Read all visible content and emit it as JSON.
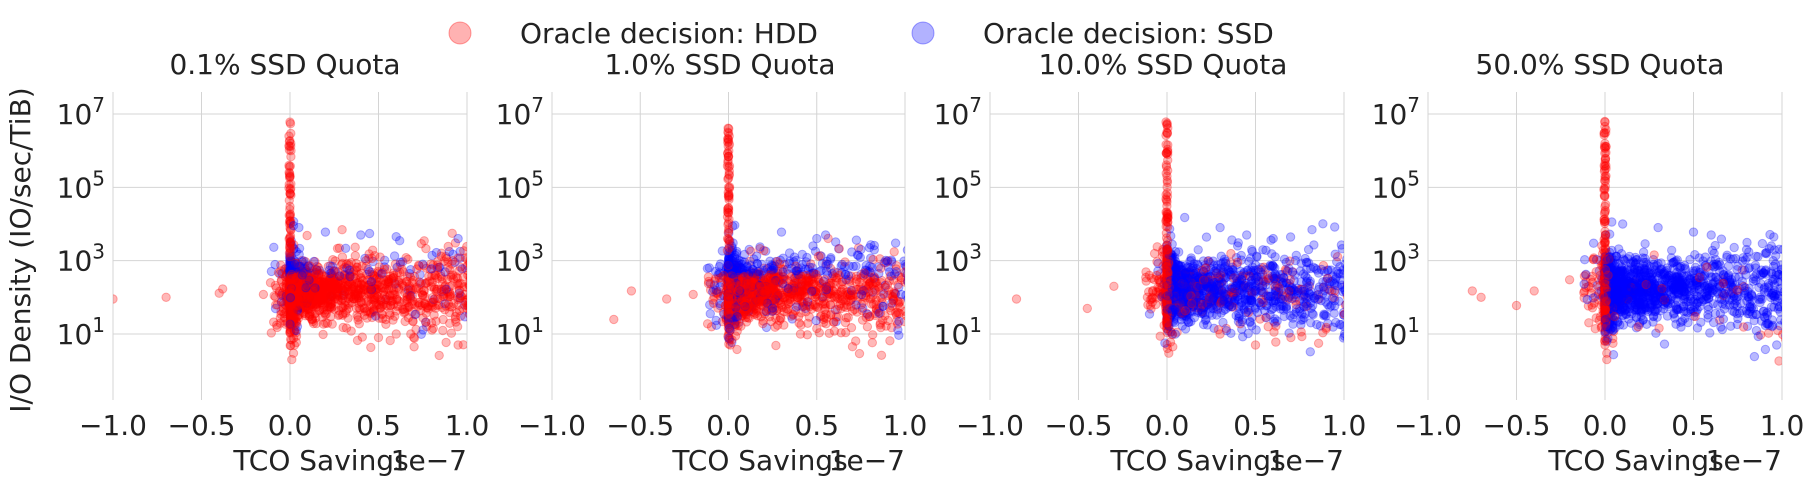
{
  "colors": {
    "hdd": "#ff0000",
    "ssd": "#0000ff",
    "grid": "#d4d4d4",
    "text": "#222222"
  },
  "legend": {
    "position": "top-center",
    "items": [
      {
        "label": "Oracle decision: HDD",
        "color": "#ff0000"
      },
      {
        "label": "Oracle decision: SSD",
        "color": "#0000ff"
      }
    ]
  },
  "shared": {
    "ylabel": "I/O Density (IO/sec/TiB)",
    "xlabel": "TCO Savings",
    "x_offset_text": "1e−7",
    "x_ticks": [
      -1.0,
      -0.5,
      0.0,
      0.5,
      1.0
    ],
    "x_tick_labels": [
      "−1.0",
      "−0.5",
      "0.0",
      "0.5",
      "1.0"
    ],
    "y_ticks_exp": [
      1,
      3,
      5,
      7
    ]
  },
  "chart_data": [
    {
      "type": "scatter",
      "title": "0.1% SSD Quota",
      "xlim": [
        -1.0,
        1.0
      ],
      "ylim_log10": [
        -0.8,
        7.6
      ],
      "yscale": "log",
      "grid": true,
      "x_scale_factor": "1e-7",
      "series": [
        {
          "name": "Oracle decision: HDD",
          "color": "#ff0000",
          "ssd_share": 0.12,
          "points": [
            [
              -1.0,
              90
            ],
            [
              -0.7,
              100
            ],
            [
              -0.4,
              130
            ],
            [
              -0.38,
              170
            ],
            [
              -0.15,
              120
            ],
            [
              0.0,
              6000000.0
            ],
            [
              0.0,
              200000.0
            ],
            [
              0.0,
              30000
            ],
            [
              0.0,
              4000
            ],
            [
              0.01,
              2
            ],
            [
              0.02,
              3
            ],
            [
              0.3,
              15
            ],
            [
              0.5,
              8
            ],
            [
              0.6,
              10
            ],
            [
              0.8,
              20
            ],
            [
              0.95,
              5
            ],
            [
              0.99,
              120
            ]
          ]
        },
        {
          "name": "Oracle decision: SSD",
          "color": "#0000ff",
          "points": [
            [
              0.02,
              9000
            ],
            [
              0.05,
              8000
            ],
            [
              0.2,
              6000
            ],
            [
              0.4,
              5000
            ],
            [
              0.45,
              5500
            ],
            [
              0.6,
              4500
            ],
            [
              0.62,
              3500
            ],
            [
              0.75,
              800
            ],
            [
              0.8,
              600
            ],
            [
              0.95,
              4000
            ]
          ]
        }
      ]
    },
    {
      "type": "scatter",
      "title": "1.0% SSD Quota",
      "xlim": [
        -1.0,
        1.0
      ],
      "ylim_log10": [
        -0.8,
        7.6
      ],
      "yscale": "log",
      "grid": true,
      "x_scale_factor": "1e-7",
      "series": [
        {
          "name": "Oracle decision: HDD",
          "color": "#ff0000",
          "ssd_share": 0.35,
          "points": [
            [
              -0.65,
              25
            ],
            [
              -0.55,
              150
            ],
            [
              -0.35,
              90
            ],
            [
              -0.2,
              120
            ],
            [
              0.0,
              3000000.0
            ],
            [
              0.0,
              100000.0
            ],
            [
              0.0,
              20000
            ],
            [
              0.01,
              5
            ],
            [
              0.02,
              7
            ],
            [
              0.4,
              20
            ],
            [
              0.6,
              12
            ],
            [
              0.8,
              30
            ]
          ]
        },
        {
          "name": "Oracle decision: SSD",
          "color": "#0000ff",
          "points": [
            [
              0.3,
              6000
            ],
            [
              0.5,
              4000
            ],
            [
              0.55,
              5000
            ],
            [
              0.75,
              2000
            ],
            [
              0.8,
              700
            ],
            [
              0.95,
              500
            ]
          ]
        }
      ]
    },
    {
      "type": "scatter",
      "title": "10.0% SSD Quota",
      "xlim": [
        -1.0,
        1.0
      ],
      "ylim_log10": [
        -0.8,
        7.6
      ],
      "yscale": "log",
      "grid": true,
      "x_scale_factor": "1e-7",
      "series": [
        {
          "name": "Oracle decision: HDD",
          "color": "#ff0000",
          "ssd_share": 0.85,
          "points": [
            [
              -0.85,
              90
            ],
            [
              -0.45,
              50
            ],
            [
              -0.3,
              200
            ],
            [
              -0.1,
              400
            ],
            [
              0.0,
              5000000.0
            ],
            [
              0.0,
              200000.0
            ],
            [
              0.0,
              40000
            ],
            [
              0.01,
              3
            ],
            [
              0.02,
              6
            ],
            [
              0.3,
              10
            ],
            [
              0.5,
              5
            ],
            [
              0.7,
              8
            ],
            [
              0.9,
              15
            ]
          ]
        },
        {
          "name": "Oracle decision: SSD",
          "color": "#0000ff",
          "points": [
            [
              0.1,
              15000
            ],
            [
              0.3,
              8000
            ],
            [
              0.45,
              5000
            ],
            [
              0.6,
              4000
            ],
            [
              0.8,
              2000
            ],
            [
              0.95,
              1500
            ],
            [
              0.98,
              300
            ]
          ]
        }
      ]
    },
    {
      "type": "scatter",
      "title": "50.0% SSD Quota",
      "xlim": [
        -1.0,
        1.0
      ],
      "ylim_log10": [
        -0.8,
        7.6
      ],
      "yscale": "log",
      "grid": true,
      "x_scale_factor": "1e-7",
      "series": [
        {
          "name": "Oracle decision: HDD",
          "color": "#ff0000",
          "ssd_share": 0.97,
          "points": [
            [
              -0.75,
              150
            ],
            [
              -0.7,
              100
            ],
            [
              -0.5,
              60
            ],
            [
              -0.4,
              150
            ],
            [
              -0.2,
              300
            ],
            [
              -0.05,
              500
            ],
            [
              0.0,
              6000000.0
            ],
            [
              0.0,
              200000.0
            ],
            [
              0.0,
              30000
            ],
            [
              0.0,
              5
            ],
            [
              0.01,
              2
            ],
            [
              0.01,
              3
            ]
          ]
        },
        {
          "name": "Oracle decision: SSD",
          "color": "#0000ff",
          "points": [
            [
              0.1,
              10000
            ],
            [
              0.3,
              8000
            ],
            [
              0.5,
              6000
            ],
            [
              0.6,
              5000
            ],
            [
              0.8,
              2000
            ],
            [
              0.95,
              1000
            ],
            [
              0.97,
              5
            ]
          ]
        }
      ]
    }
  ]
}
